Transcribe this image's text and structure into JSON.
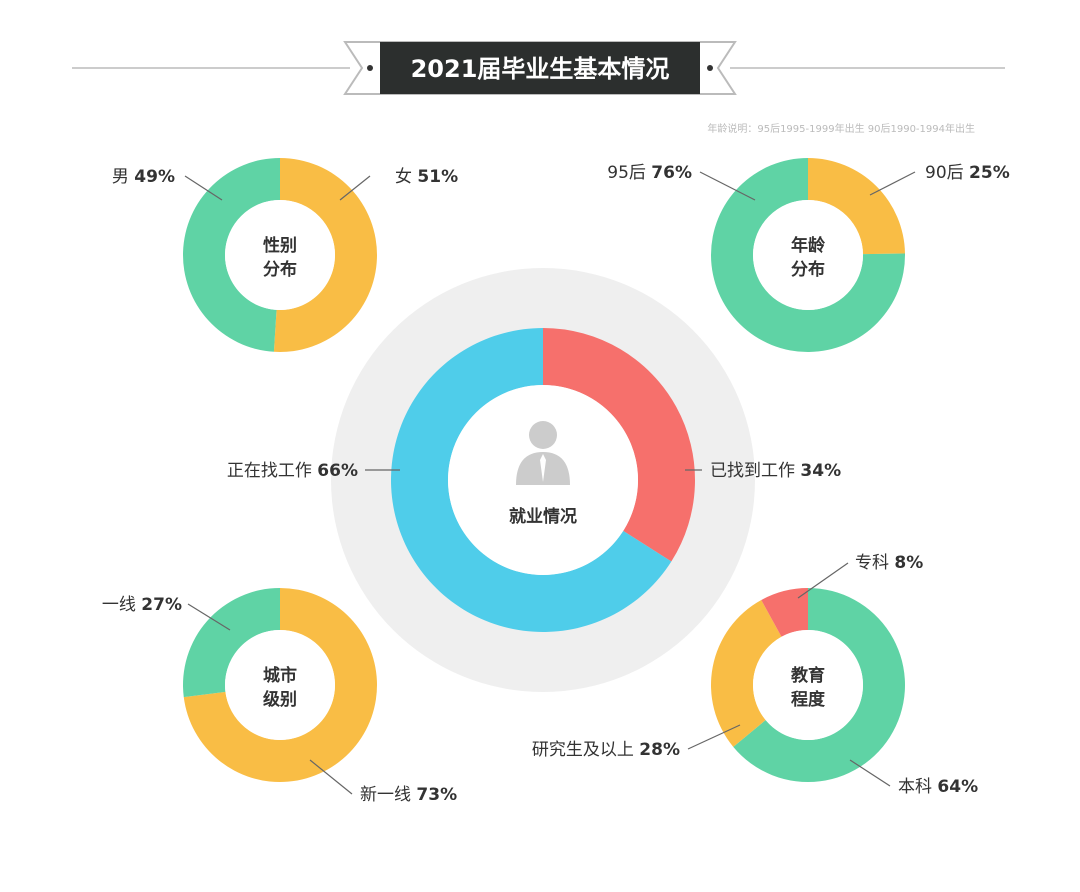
{
  "title": "2021届毕业生基本情况",
  "note": "年龄说明：95后1995-1999年出生 90后1990-1994年出生",
  "colors": {
    "green": "#5fd3a5",
    "orange": "#f9bd45",
    "red": "#f6706c",
    "blue": "#4fcdea",
    "banner": "#2c2f2e",
    "halo": "#efefef"
  },
  "chart_data": [
    {
      "type": "pie",
      "id": "gender",
      "center_label": [
        "性别",
        "分布"
      ],
      "slices": [
        {
          "label": "女",
          "value": 51,
          "color": "#f9bd45"
        },
        {
          "label": "男",
          "value": 49,
          "color": "#5fd3a5"
        }
      ]
    },
    {
      "type": "pie",
      "id": "age",
      "center_label": [
        "年龄",
        "分布"
      ],
      "slices": [
        {
          "label": "90后",
          "value": 25,
          "color": "#f9bd45"
        },
        {
          "label": "95后",
          "value": 76,
          "color": "#5fd3a5"
        }
      ]
    },
    {
      "type": "pie",
      "id": "employment",
      "center_label": [
        "就业情况"
      ],
      "center_icon": "person-icon",
      "slices": [
        {
          "label": "已找到工作",
          "value": 34,
          "color": "#f6706c"
        },
        {
          "label": "正在找工作",
          "value": 66,
          "color": "#4fcdea"
        }
      ]
    },
    {
      "type": "pie",
      "id": "city",
      "center_label": [
        "城市",
        "级别"
      ],
      "slices": [
        {
          "label": "新一线",
          "value": 73,
          "color": "#f9bd45"
        },
        {
          "label": "一线",
          "value": 27,
          "color": "#5fd3a5"
        }
      ]
    },
    {
      "type": "pie",
      "id": "education",
      "center_label": [
        "教育",
        "程度"
      ],
      "slices": [
        {
          "label": "本科",
          "value": 64,
          "color": "#5fd3a5"
        },
        {
          "label": "研究生及以上",
          "value": 28,
          "color": "#f9bd45"
        },
        {
          "label": "专科",
          "value": 8,
          "color": "#f6706c"
        }
      ]
    }
  ]
}
